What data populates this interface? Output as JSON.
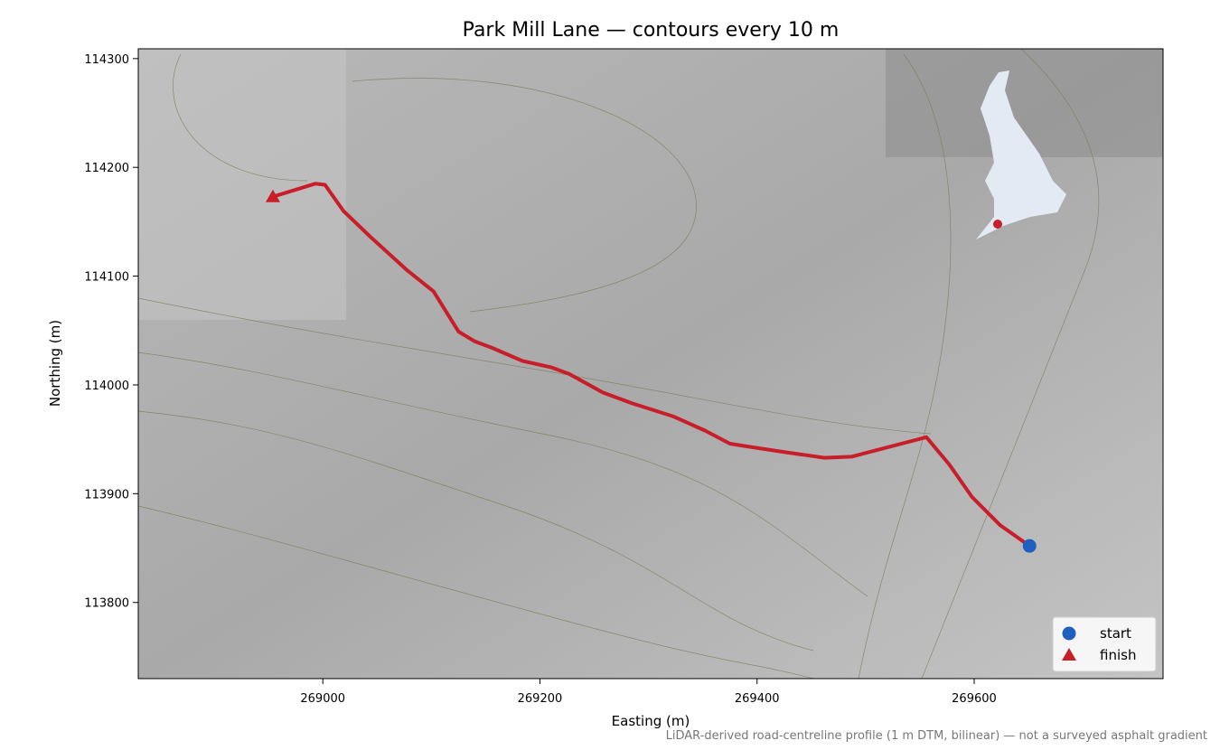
{
  "chart_data": {
    "type": "line",
    "title": "Park Mill Lane — contours every 10 m",
    "xlabel": "Easting (m)",
    "ylabel": "Northing (m)",
    "note": "LiDAR-derived road-centreline profile (1 m DTM, bilinear) — not a surveyed asphalt gradient",
    "xlim": [
      268830,
      269774
    ],
    "ylim": [
      113730,
      114309
    ],
    "xticks": [
      269000,
      269200,
      269400,
      269600
    ],
    "yticks": [
      113800,
      113900,
      114000,
      114100,
      114200,
      114300
    ],
    "route": {
      "color": "#c81e2a",
      "x": [
        268954,
        268993,
        269002,
        269019,
        269044,
        269077,
        269102,
        269115,
        269125,
        269140,
        269156,
        269184,
        269211,
        269227,
        269258,
        269285,
        269323,
        269352,
        269375,
        269394,
        269427,
        269462,
        269487,
        269506,
        269556,
        269577,
        269598,
        269624,
        269651
      ],
      "values": [
        114173,
        114185,
        114184,
        114160,
        114136,
        114106,
        114086,
        114065,
        114049,
        114040,
        114034,
        114022,
        114016,
        114010,
        113993,
        113983,
        113971,
        113958,
        113946,
        113943,
        113938,
        113933,
        113934,
        113939,
        113952,
        113927,
        113897,
        113871,
        113852
      ]
    },
    "points": [
      {
        "name": "start",
        "x": 269651,
        "y": 113852,
        "color": "#1f5fbf",
        "marker": "circle"
      },
      {
        "name": "finish",
        "x": 268954,
        "y": 114173,
        "color": "#c81e2a",
        "marker": "triangle"
      }
    ],
    "legend": "lower right"
  }
}
